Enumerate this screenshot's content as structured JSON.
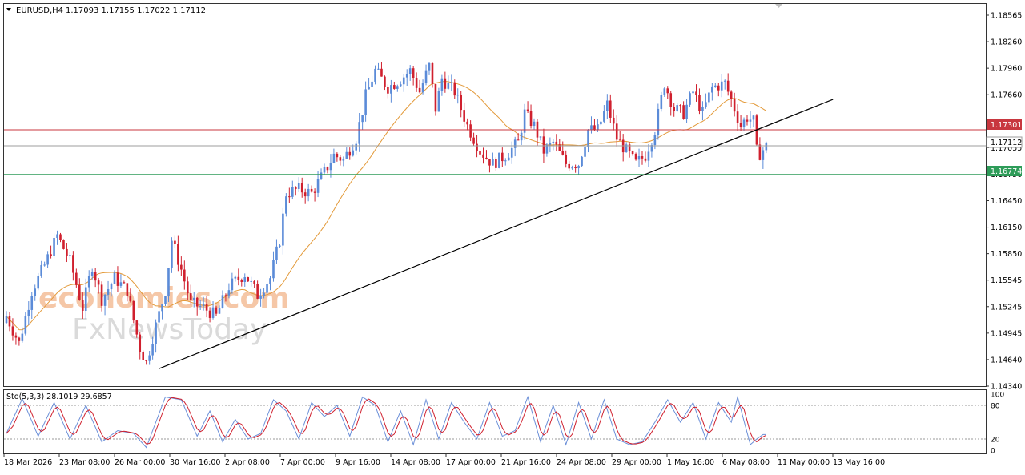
{
  "header": {
    "symbol_timeframe": "EURUSD,H4",
    "ohlc": "1.17093 1.17155 1.17022 1.17112"
  },
  "watermark": {
    "line1": "economies.com",
    "line2": "FxNewsToday"
  },
  "colors": {
    "bull": "#5b8bd8",
    "bear": "#d0202e",
    "ma": "#e39a3a",
    "trendline": "#000000",
    "resistance": "#c8373f",
    "support": "#2e9c59",
    "current": "#9e9e9e",
    "stoch_main": "#6b8fd8",
    "stoch_signal": "#d0202e"
  },
  "levels": {
    "resistance": {
      "value": 1.17301,
      "label": "1.17301"
    },
    "current": {
      "value": 1.17112,
      "label": "1.17112"
    },
    "support": {
      "value": 1.16774,
      "label": "1.16774"
    }
  },
  "stochastic": {
    "label": "Sto(5,3,3) 28.1019 29.6857",
    "k_last": 28.1019,
    "d_last": 29.6857,
    "axis_labels": [
      "100",
      "80",
      "20",
      "0"
    ],
    "levels": [
      80,
      20
    ]
  },
  "chart_data": {
    "type": "candlestick",
    "symbol": "EURUSD",
    "timeframe": "H4",
    "y_ticks": [
      "1.18565",
      "1.18260",
      "1.17960",
      "1.17660",
      "1.17355",
      "1.17055",
      "1.16750",
      "1.16450",
      "1.16150",
      "1.15850",
      "1.15545",
      "1.15245",
      "1.14945",
      "1.14640",
      "1.14340"
    ],
    "ylim": [
      1.1434,
      1.1872
    ],
    "x_ticks": [
      "18 Mar 2026",
      "23 Mar 08:00",
      "26 Mar 00:00",
      "30 Mar 16:00",
      "2 Apr 08:00",
      "7 Apr 00:00",
      "9 Apr 16:00",
      "14 Apr 08:00",
      "17 Apr 00:00",
      "21 Apr 16:00",
      "24 Apr 08:00",
      "29 Apr 00:00",
      "1 May 16:00",
      "6 May 08:00",
      "11 May 00:00",
      "13 May 16:00"
    ],
    "trendline": {
      "from": 1.1448,
      "to": 1.1766
    },
    "close_anchors": [
      [
        0,
        1.151
      ],
      [
        4,
        1.1478
      ],
      [
        8,
        1.154
      ],
      [
        12,
        1.157
      ],
      [
        16,
        1.1605
      ],
      [
        20,
        1.1575
      ],
      [
        24,
        1.152
      ],
      [
        27,
        1.157
      ],
      [
        30,
        1.153
      ],
      [
        34,
        1.1555
      ],
      [
        38,
        1.154
      ],
      [
        40,
        1.1505
      ],
      [
        42,
        1.1472
      ],
      [
        44,
        1.1455
      ],
      [
        46,
        1.1485
      ],
      [
        50,
        1.154
      ],
      [
        52,
        1.16
      ],
      [
        55,
        1.1565
      ],
      [
        58,
        1.1525
      ],
      [
        62,
        1.152
      ],
      [
        66,
        1.151
      ],
      [
        70,
        1.1545
      ],
      [
        75,
        1.156
      ],
      [
        79,
        1.1535
      ],
      [
        83,
        1.1555
      ],
      [
        86,
        1.16
      ],
      [
        88,
        1.1655
      ],
      [
        92,
        1.166
      ],
      [
        96,
        1.1655
      ],
      [
        100,
        1.168
      ],
      [
        103,
        1.17
      ],
      [
        106,
        1.1695
      ],
      [
        110,
        1.172
      ],
      [
        113,
        1.177
      ],
      [
        116,
        1.18
      ],
      [
        120,
        1.178
      ],
      [
        124,
        1.179
      ],
      [
        127,
        1.18
      ],
      [
        130,
        1.1775
      ],
      [
        133,
        1.1805
      ],
      [
        135,
        1.1755
      ],
      [
        137,
        1.179
      ],
      [
        141,
        1.1775
      ],
      [
        145,
        1.1735
      ],
      [
        149,
        1.1705
      ],
      [
        153,
        1.169
      ],
      [
        157,
        1.17
      ],
      [
        161,
        1.1715
      ],
      [
        163,
        1.175
      ],
      [
        166,
        1.1735
      ],
      [
        169,
        1.1705
      ],
      [
        172,
        1.1715
      ],
      [
        176,
        1.169
      ],
      [
        180,
        1.169
      ],
      [
        183,
        1.173
      ],
      [
        186,
        1.173
      ],
      [
        189,
        1.176
      ],
      [
        192,
        1.172
      ],
      [
        195,
        1.1705
      ],
      [
        198,
        1.169
      ],
      [
        201,
        1.17
      ],
      [
        204,
        1.173
      ],
      [
        207,
        1.1785
      ],
      [
        210,
        1.1755
      ],
      [
        213,
        1.175
      ],
      [
        216,
        1.1775
      ],
      [
        219,
        1.175
      ],
      [
        222,
        1.178
      ],
      [
        226,
        1.1785
      ],
      [
        229,
        1.1755
      ],
      [
        231,
        1.1735
      ],
      [
        233,
        1.1745
      ],
      [
        235,
        1.174
      ],
      [
        236,
        1.1705
      ],
      [
        237,
        1.1702
      ],
      [
        239,
        1.1711
      ]
    ],
    "stoch_k_anchors": [
      [
        0,
        30
      ],
      [
        5,
        92
      ],
      [
        10,
        25
      ],
      [
        15,
        85
      ],
      [
        20,
        20
      ],
      [
        25,
        80
      ],
      [
        30,
        15
      ],
      [
        35,
        35
      ],
      [
        40,
        30
      ],
      [
        44,
        5
      ],
      [
        50,
        95
      ],
      [
        55,
        90
      ],
      [
        60,
        25
      ],
      [
        64,
        70
      ],
      [
        68,
        15
      ],
      [
        72,
        55
      ],
      [
        76,
        20
      ],
      [
        80,
        30
      ],
      [
        84,
        90
      ],
      [
        88,
        70
      ],
      [
        92,
        20
      ],
      [
        96,
        85
      ],
      [
        100,
        60
      ],
      [
        104,
        80
      ],
      [
        108,
        25
      ],
      [
        112,
        95
      ],
      [
        116,
        80
      ],
      [
        120,
        15
      ],
      [
        124,
        70
      ],
      [
        128,
        10
      ],
      [
        132,
        90
      ],
      [
        136,
        20
      ],
      [
        140,
        85
      ],
      [
        144,
        50
      ],
      [
        148,
        20
      ],
      [
        152,
        85
      ],
      [
        156,
        25
      ],
      [
        160,
        35
      ],
      [
        164,
        95
      ],
      [
        168,
        15
      ],
      [
        172,
        80
      ],
      [
        176,
        10
      ],
      [
        180,
        85
      ],
      [
        184,
        20
      ],
      [
        188,
        90
      ],
      [
        192,
        20
      ],
      [
        196,
        10
      ],
      [
        200,
        15
      ],
      [
        204,
        50
      ],
      [
        208,
        90
      ],
      [
        212,
        50
      ],
      [
        216,
        85
      ],
      [
        220,
        20
      ],
      [
        224,
        85
      ],
      [
        228,
        50
      ],
      [
        230,
        95
      ],
      [
        234,
        10
      ],
      [
        236,
        20
      ],
      [
        238,
        28
      ]
    ]
  }
}
